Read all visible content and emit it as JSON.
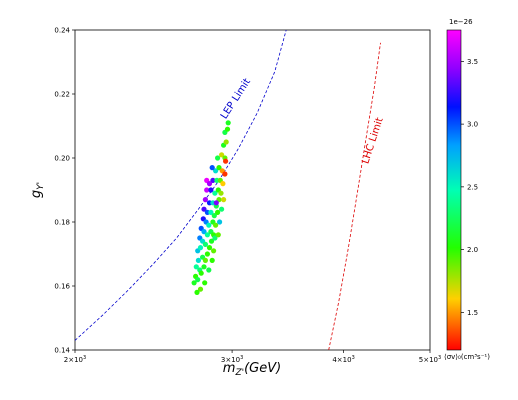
{
  "chart_data": {
    "type": "scatter",
    "xlabel": "m_{Z'}(GeV)",
    "ylabel": "g_{Y'}",
    "x_scale": "log",
    "xlim": [
      2000,
      5000
    ],
    "ylim": [
      0.14,
      0.24
    ],
    "x_ticks": [
      {
        "value": 2000,
        "base": "2×10",
        "exp": "3"
      },
      {
        "value": 3000,
        "base": "3×10",
        "exp": "3"
      },
      {
        "value": 4000,
        "base": "4×10",
        "exp": "3"
      },
      {
        "value": 5000,
        "base": "5×10",
        "exp": "3"
      }
    ],
    "y_ticks": [
      "0.14",
      "0.16",
      "0.18",
      "0.20",
      "0.22",
      "0.24"
    ],
    "grid": false,
    "colorbar": {
      "label": "⟨σv⟩₀(cm³s⁻¹)",
      "offset_text": "1e−26",
      "range": [
        1.2,
        3.75
      ],
      "ticks": [
        "1.5",
        "2.0",
        "2.5",
        "3.0",
        "3.5"
      ],
      "colormap": "gist_rainbow"
    },
    "curves": [
      {
        "name": "LEP Limit",
        "color": "#0000cc",
        "x": [
          2000,
          2150,
          2300,
          2450,
          2600,
          2750,
          2900,
          3050,
          3200,
          3350,
          3450
        ],
        "y": [
          0.143,
          0.151,
          0.159,
          0.167,
          0.175,
          0.184,
          0.193,
          0.203,
          0.214,
          0.227,
          0.24
        ]
      },
      {
        "name": "LHC Limit",
        "color": "#dd0000",
        "x": [
          3850,
          3950,
          4050,
          4150,
          4250,
          4330,
          4400
        ],
        "y": [
          0.14,
          0.155,
          0.172,
          0.19,
          0.208,
          0.222,
          0.236
        ]
      }
    ],
    "points": [
      {
        "x": 2720,
        "y": 0.161,
        "c": 2.1
      },
      {
        "x": 2730,
        "y": 0.163,
        "c": 2.0
      },
      {
        "x": 2745,
        "y": 0.162,
        "c": 2.2
      },
      {
        "x": 2760,
        "y": 0.165,
        "c": 2.3
      },
      {
        "x": 2735,
        "y": 0.166,
        "c": 2.4
      },
      {
        "x": 2750,
        "y": 0.168,
        "c": 2.6
      },
      {
        "x": 2770,
        "y": 0.164,
        "c": 2.0
      },
      {
        "x": 2790,
        "y": 0.166,
        "c": 2.1
      },
      {
        "x": 2780,
        "y": 0.169,
        "c": 2.2
      },
      {
        "x": 2745,
        "y": 0.171,
        "c": 2.7
      },
      {
        "x": 2765,
        "y": 0.172,
        "c": 2.5
      },
      {
        "x": 2800,
        "y": 0.168,
        "c": 1.9
      },
      {
        "x": 2815,
        "y": 0.17,
        "c": 2.0
      },
      {
        "x": 2760,
        "y": 0.175,
        "c": 2.9
      },
      {
        "x": 2780,
        "y": 0.174,
        "c": 2.6
      },
      {
        "x": 2800,
        "y": 0.173,
        "c": 2.3
      },
      {
        "x": 2830,
        "y": 0.172,
        "c": 2.0
      },
      {
        "x": 2845,
        "y": 0.174,
        "c": 2.1
      },
      {
        "x": 2770,
        "y": 0.178,
        "c": 3.0
      },
      {
        "x": 2790,
        "y": 0.177,
        "c": 2.8
      },
      {
        "x": 2815,
        "y": 0.176,
        "c": 2.4
      },
      {
        "x": 2840,
        "y": 0.177,
        "c": 2.2
      },
      {
        "x": 2860,
        "y": 0.176,
        "c": 2.0
      },
      {
        "x": 2785,
        "y": 0.181,
        "c": 3.2
      },
      {
        "x": 2805,
        "y": 0.18,
        "c": 2.9
      },
      {
        "x": 2825,
        "y": 0.179,
        "c": 2.5
      },
      {
        "x": 2855,
        "y": 0.18,
        "c": 2.1
      },
      {
        "x": 2875,
        "y": 0.179,
        "c": 1.9
      },
      {
        "x": 2790,
        "y": 0.184,
        "c": 3.3
      },
      {
        "x": 2815,
        "y": 0.183,
        "c": 3.0
      },
      {
        "x": 2840,
        "y": 0.183,
        "c": 2.5
      },
      {
        "x": 2865,
        "y": 0.182,
        "c": 2.2
      },
      {
        "x": 2890,
        "y": 0.183,
        "c": 2.0
      },
      {
        "x": 2800,
        "y": 0.187,
        "c": 3.5
      },
      {
        "x": 2830,
        "y": 0.186,
        "c": 3.1
      },
      {
        "x": 2855,
        "y": 0.186,
        "c": 2.6
      },
      {
        "x": 2880,
        "y": 0.185,
        "c": 2.2
      },
      {
        "x": 2900,
        "y": 0.187,
        "c": 1.9
      },
      {
        "x": 2810,
        "y": 0.19,
        "c": 3.6
      },
      {
        "x": 2840,
        "y": 0.19,
        "c": 3.2
      },
      {
        "x": 2870,
        "y": 0.189,
        "c": 2.4
      },
      {
        "x": 2895,
        "y": 0.19,
        "c": 2.0
      },
      {
        "x": 2915,
        "y": 0.189,
        "c": 1.8
      },
      {
        "x": 2855,
        "y": 0.193,
        "c": 3.3
      },
      {
        "x": 2885,
        "y": 0.193,
        "c": 2.3
      },
      {
        "x": 2910,
        "y": 0.193,
        "c": 1.9
      },
      {
        "x": 2930,
        "y": 0.192,
        "c": 1.6
      },
      {
        "x": 2875,
        "y": 0.196,
        "c": 2.6
      },
      {
        "x": 2900,
        "y": 0.197,
        "c": 2.0
      },
      {
        "x": 2925,
        "y": 0.196,
        "c": 1.5
      },
      {
        "x": 2945,
        "y": 0.195,
        "c": 1.3
      },
      {
        "x": 2890,
        "y": 0.2,
        "c": 2.2
      },
      {
        "x": 2920,
        "y": 0.201,
        "c": 1.7
      },
      {
        "x": 2945,
        "y": 0.2,
        "c": 1.9
      },
      {
        "x": 2935,
        "y": 0.204,
        "c": 2.1
      },
      {
        "x": 2955,
        "y": 0.205,
        "c": 1.8
      },
      {
        "x": 2945,
        "y": 0.208,
        "c": 2.2
      },
      {
        "x": 2965,
        "y": 0.209,
        "c": 2.0
      },
      {
        "x": 2970,
        "y": 0.211,
        "c": 2.1
      },
      {
        "x": 2950,
        "y": 0.199,
        "c": 1.3
      },
      {
        "x": 2880,
        "y": 0.186,
        "c": 3.4
      },
      {
        "x": 2905,
        "y": 0.18,
        "c": 2.7
      },
      {
        "x": 2920,
        "y": 0.184,
        "c": 2.3
      },
      {
        "x": 2935,
        "y": 0.187,
        "c": 1.7
      },
      {
        "x": 2870,
        "y": 0.175,
        "c": 2.3
      },
      {
        "x": 2895,
        "y": 0.176,
        "c": 1.9
      },
      {
        "x": 2850,
        "y": 0.168,
        "c": 2.0
      },
      {
        "x": 2825,
        "y": 0.165,
        "c": 2.2
      },
      {
        "x": 2795,
        "y": 0.161,
        "c": 2.0
      },
      {
        "x": 2765,
        "y": 0.159,
        "c": 1.9
      },
      {
        "x": 2740,
        "y": 0.158,
        "c": 2.0
      },
      {
        "x": 2860,
        "y": 0.171,
        "c": 1.9
      },
      {
        "x": 2810,
        "y": 0.193,
        "c": 3.7
      },
      {
        "x": 2850,
        "y": 0.197,
        "c": 3.0
      },
      {
        "x": 2830,
        "y": 0.192,
        "c": 3.5
      }
    ]
  }
}
